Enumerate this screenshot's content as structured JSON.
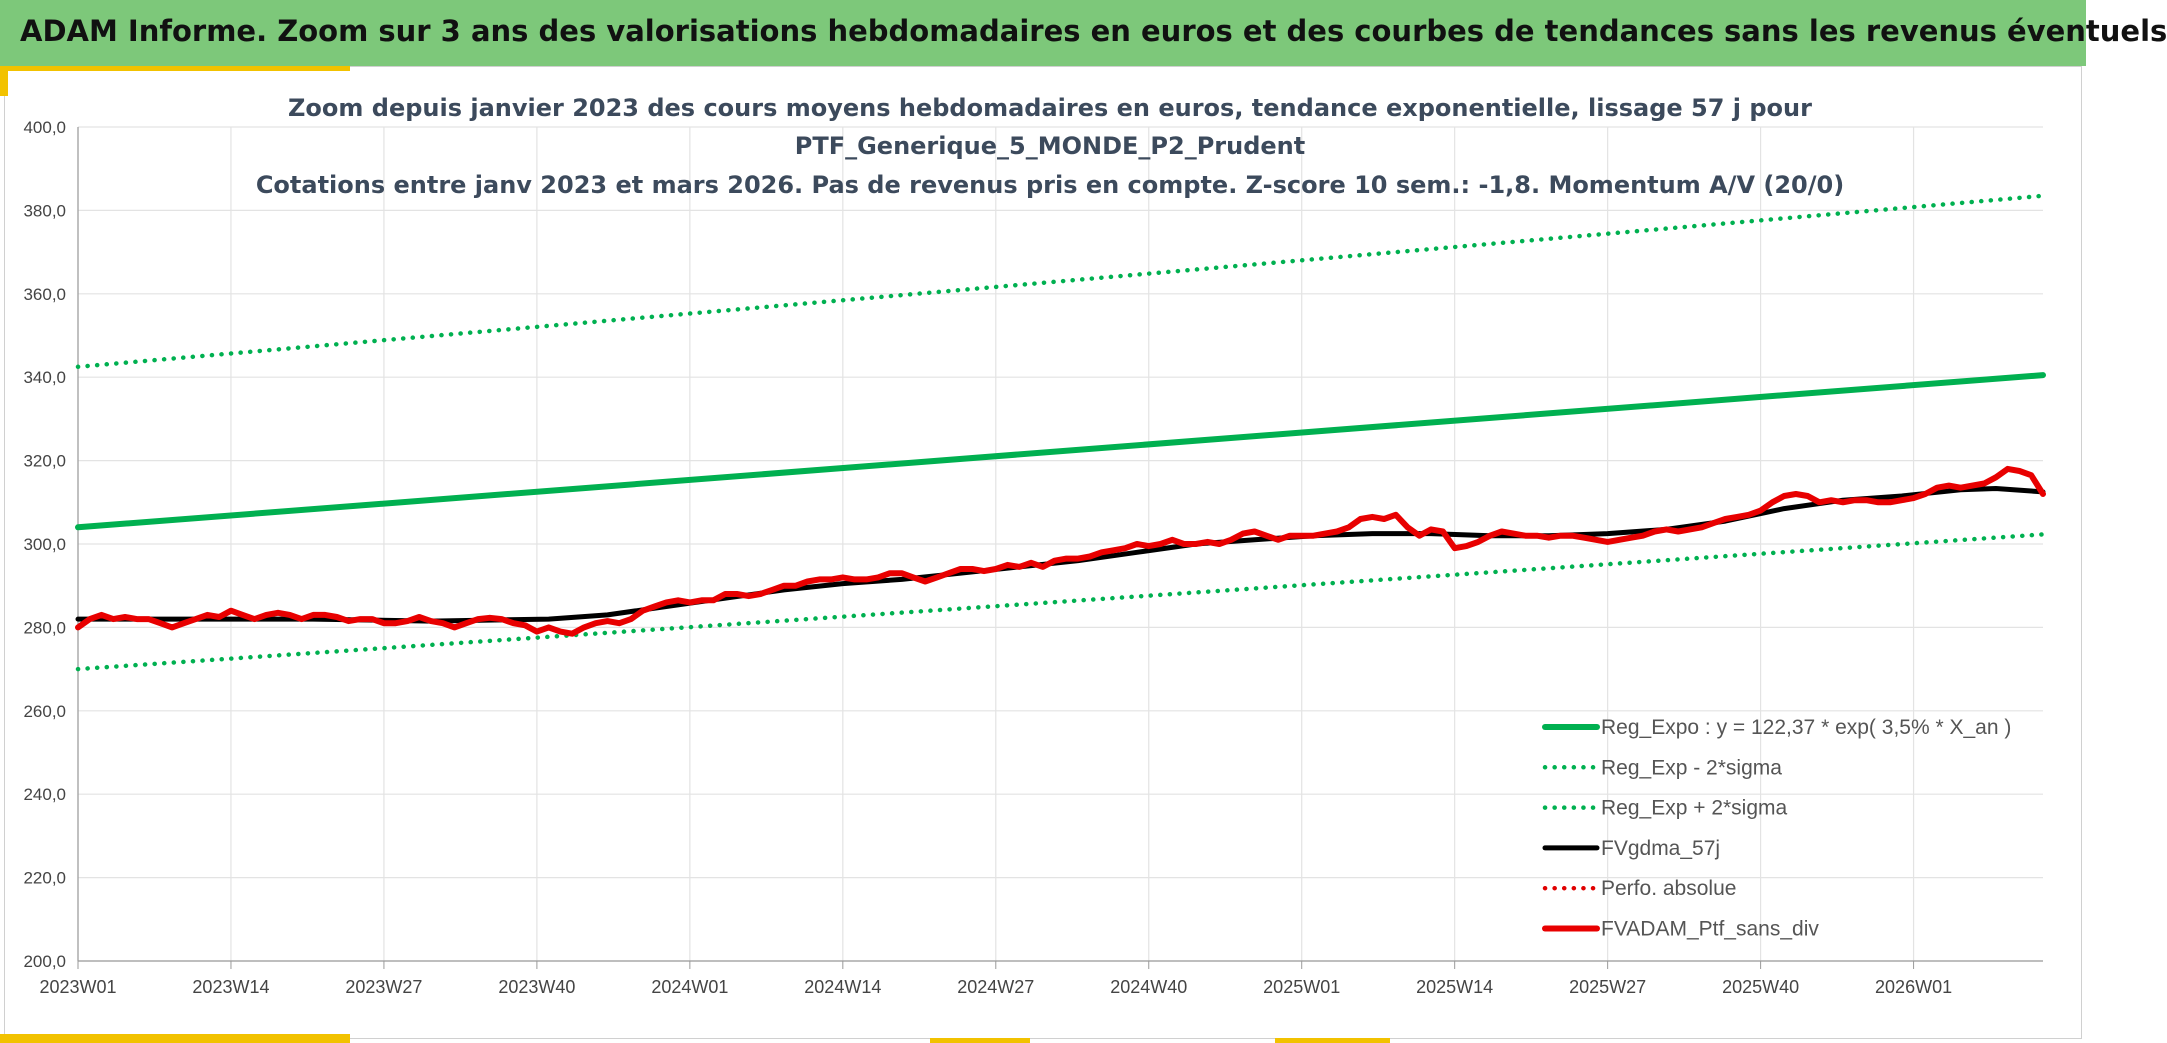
{
  "header": {
    "title": "ADAM Informe. Zoom sur 3 ans des valorisations hebdomadaires en euros et des courbes de tendances sans les revenus éventuels"
  },
  "colors": {
    "banner": "#7dc87a",
    "accent": "#f2c200",
    "reg": "#00b050",
    "sigma": "#00b050",
    "ma": "#000000",
    "perfo": "#e00000",
    "price": "#e80000"
  },
  "chart_data": {
    "type": "line",
    "title_lines": [
      "Zoom depuis janvier 2023 des cours moyens hebdomadaires en euros, tendance exponentielle, lissage 57 j pour",
      "PTF_Generique_5_MONDE_P2_Prudent",
      "Cotations entre janv 2023 et mars 2026. Pas de revenus pris en compte. Z-score 10 sem.: -1,8. Momentum A/V (20/0)"
    ],
    "ylim": [
      200,
      400
    ],
    "yticks": [
      "400,0",
      "380,0",
      "360,0",
      "340,0",
      "320,0",
      "300,0",
      "280,0",
      "260,0",
      "240,0",
      "220,0",
      "200,0"
    ],
    "x_total_weeks": 167,
    "xticks": [
      {
        "label": "2023W01",
        "week": 0
      },
      {
        "label": "2023W14",
        "week": 13
      },
      {
        "label": "2023W27",
        "week": 26
      },
      {
        "label": "2023W40",
        "week": 39
      },
      {
        "label": "2024W01",
        "week": 52
      },
      {
        "label": "2024W14",
        "week": 65
      },
      {
        "label": "2024W27",
        "week": 78
      },
      {
        "label": "2024W40",
        "week": 91
      },
      {
        "label": "2025W01",
        "week": 104
      },
      {
        "label": "2025W14",
        "week": 117
      },
      {
        "label": "2025W27",
        "week": 130
      },
      {
        "label": "2025W40",
        "week": 143
      },
      {
        "label": "2026W01",
        "week": 156
      }
    ],
    "series": [
      {
        "name": "Reg_Expo : y = 122,37 * exp( 3,5% *  X_an )",
        "style": "solid-thick",
        "color": "#00b050",
        "points": [
          [
            0,
            304.0
          ],
          [
            167,
            340.5
          ]
        ]
      },
      {
        "name": "Reg_Exp - 2*sigma",
        "style": "dotted",
        "color": "#00b050",
        "points": [
          [
            0,
            270.0
          ],
          [
            167,
            302.3
          ]
        ]
      },
      {
        "name": "Reg_Exp + 2*sigma",
        "style": "dotted",
        "color": "#00b050",
        "points": [
          [
            0,
            342.5
          ],
          [
            167,
            383.5
          ]
        ]
      },
      {
        "name": "FVgdma_57j",
        "style": "solid",
        "color": "#000000",
        "points": [
          [
            0,
            282
          ],
          [
            10,
            282
          ],
          [
            20,
            282
          ],
          [
            30,
            281.5
          ],
          [
            40,
            282
          ],
          [
            45,
            283
          ],
          [
            50,
            285
          ],
          [
            55,
            287
          ],
          [
            60,
            289
          ],
          [
            65,
            290.5
          ],
          [
            70,
            291.5
          ],
          [
            75,
            293
          ],
          [
            80,
            294.5
          ],
          [
            85,
            296
          ],
          [
            90,
            298
          ],
          [
            95,
            300
          ],
          [
            100,
            301
          ],
          [
            105,
            302
          ],
          [
            110,
            302.5
          ],
          [
            115,
            302.5
          ],
          [
            120,
            302
          ],
          [
            125,
            302
          ],
          [
            130,
            302.5
          ],
          [
            135,
            303.5
          ],
          [
            140,
            305.5
          ],
          [
            145,
            308.5
          ],
          [
            150,
            310.5
          ],
          [
            155,
            311.5
          ],
          [
            160,
            313
          ],
          [
            163,
            313.3
          ],
          [
            167,
            312.5
          ]
        ]
      },
      {
        "name": "Perfo. absolue",
        "style": "dotted",
        "color": "#e00000",
        "points": []
      },
      {
        "name": "FVADAM_Ptf_sans_div",
        "style": "solid-thick",
        "color": "#e80000",
        "points": [
          [
            0,
            280
          ],
          [
            1,
            282
          ],
          [
            2,
            283
          ],
          [
            3,
            282
          ],
          [
            4,
            282.5
          ],
          [
            5,
            282
          ],
          [
            6,
            282
          ],
          [
            7,
            281
          ],
          [
            8,
            280
          ],
          [
            9,
            281
          ],
          [
            10,
            282
          ],
          [
            11,
            283
          ],
          [
            12,
            282.5
          ],
          [
            13,
            284
          ],
          [
            14,
            283
          ],
          [
            15,
            282
          ],
          [
            16,
            283
          ],
          [
            17,
            283.5
          ],
          [
            18,
            283
          ],
          [
            19,
            282
          ],
          [
            20,
            283
          ],
          [
            21,
            283
          ],
          [
            22,
            282.5
          ],
          [
            23,
            281.5
          ],
          [
            24,
            282
          ],
          [
            25,
            282
          ],
          [
            26,
            281
          ],
          [
            27,
            281
          ],
          [
            28,
            281.5
          ],
          [
            29,
            282.5
          ],
          [
            30,
            281.5
          ],
          [
            31,
            281
          ],
          [
            32,
            280
          ],
          [
            33,
            281
          ],
          [
            34,
            282
          ],
          [
            35,
            282.3
          ],
          [
            36,
            282
          ],
          [
            37,
            281
          ],
          [
            38,
            280.5
          ],
          [
            39,
            279
          ],
          [
            40,
            280
          ],
          [
            41,
            279
          ],
          [
            42,
            278.5
          ],
          [
            43,
            280
          ],
          [
            44,
            281
          ],
          [
            45,
            281.5
          ],
          [
            46,
            281
          ],
          [
            47,
            282
          ],
          [
            48,
            284
          ],
          [
            49,
            285
          ],
          [
            50,
            286
          ],
          [
            51,
            286.5
          ],
          [
            52,
            286
          ],
          [
            53,
            286.5
          ],
          [
            54,
            286.5
          ],
          [
            55,
            288
          ],
          [
            56,
            288
          ],
          [
            57,
            287.5
          ],
          [
            58,
            288
          ],
          [
            59,
            289
          ],
          [
            60,
            290
          ],
          [
            61,
            290
          ],
          [
            62,
            291
          ],
          [
            63,
            291.5
          ],
          [
            64,
            291.5
          ],
          [
            65,
            292
          ],
          [
            66,
            291.5
          ],
          [
            67,
            291.5
          ],
          [
            68,
            292
          ],
          [
            69,
            293
          ],
          [
            70,
            293
          ],
          [
            71,
            292
          ],
          [
            72,
            291
          ],
          [
            73,
            292
          ],
          [
            74,
            293
          ],
          [
            75,
            294
          ],
          [
            76,
            294
          ],
          [
            77,
            293.5
          ],
          [
            78,
            294
          ],
          [
            79,
            295
          ],
          [
            80,
            294.5
          ],
          [
            81,
            295.5
          ],
          [
            82,
            294.5
          ],
          [
            83,
            296
          ],
          [
            84,
            296.5
          ],
          [
            85,
            296.5
          ],
          [
            86,
            297
          ],
          [
            87,
            298
          ],
          [
            88,
            298.5
          ],
          [
            89,
            299
          ],
          [
            90,
            300
          ],
          [
            91,
            299.5
          ],
          [
            92,
            300
          ],
          [
            93,
            301
          ],
          [
            94,
            300
          ],
          [
            95,
            300
          ],
          [
            96,
            300.5
          ],
          [
            97,
            300
          ],
          [
            98,
            301
          ],
          [
            99,
            302.5
          ],
          [
            100,
            303
          ],
          [
            101,
            302
          ],
          [
            102,
            301
          ],
          [
            103,
            302
          ],
          [
            104,
            302
          ],
          [
            105,
            302
          ],
          [
            106,
            302.5
          ],
          [
            107,
            303
          ],
          [
            108,
            304
          ],
          [
            109,
            306
          ],
          [
            110,
            306.5
          ],
          [
            111,
            306
          ],
          [
            112,
            307
          ],
          [
            113,
            304
          ],
          [
            114,
            302
          ],
          [
            115,
            303.5
          ],
          [
            116,
            303
          ],
          [
            117,
            299
          ],
          [
            118,
            299.5
          ],
          [
            119,
            300.5
          ],
          [
            120,
            302
          ],
          [
            121,
            303
          ],
          [
            122,
            302.5
          ],
          [
            123,
            302
          ],
          [
            124,
            302
          ],
          [
            125,
            301.5
          ],
          [
            126,
            302
          ],
          [
            127,
            302
          ],
          [
            128,
            301.5
          ],
          [
            129,
            301
          ],
          [
            130,
            300.5
          ],
          [
            131,
            301
          ],
          [
            132,
            301.5
          ],
          [
            133,
            302
          ],
          [
            134,
            303
          ],
          [
            135,
            303.5
          ],
          [
            136,
            303
          ],
          [
            137,
            303.5
          ],
          [
            138,
            304
          ],
          [
            139,
            305
          ],
          [
            140,
            306
          ],
          [
            141,
            306.5
          ],
          [
            142,
            307
          ],
          [
            143,
            308
          ],
          [
            144,
            310
          ],
          [
            145,
            311.5
          ],
          [
            146,
            312
          ],
          [
            147,
            311.5
          ],
          [
            148,
            310
          ],
          [
            149,
            310.5
          ],
          [
            150,
            310
          ],
          [
            151,
            310.5
          ],
          [
            152,
            310.5
          ],
          [
            153,
            310
          ],
          [
            154,
            310
          ],
          [
            155,
            310.5
          ],
          [
            156,
            311
          ],
          [
            157,
            312
          ],
          [
            158,
            313.5
          ],
          [
            159,
            314
          ],
          [
            160,
            313.5
          ],
          [
            161,
            314
          ],
          [
            162,
            314.5
          ],
          [
            163,
            316
          ],
          [
            164,
            318
          ],
          [
            165,
            317.5
          ],
          [
            166,
            316.5
          ],
          [
            167,
            312
          ]
        ]
      }
    ],
    "legend_position": "bottom-right"
  }
}
